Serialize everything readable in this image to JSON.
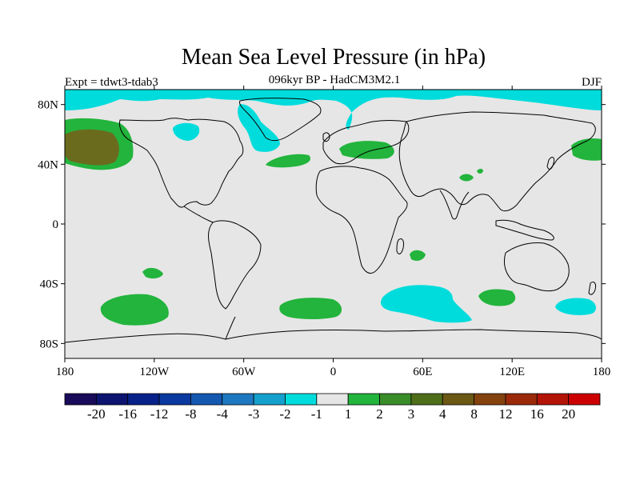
{
  "title": "Mean Sea Level Pressure (in hPa)",
  "subtitle": "096kyr BP - HadCM3M2.1",
  "left_label": "Expt = tdwt3-tdab3",
  "right_label": "DJF",
  "colors": {
    "land_ocean_bg": "#e6e6e6",
    "coast": "#000000",
    "neg_cyan": "#00dcdc",
    "pos_green": "#22b43c",
    "pos_olive": "#6b6b1e"
  },
  "map": {
    "lon_range": [
      -180,
      180
    ],
    "lat_range": [
      -90,
      90
    ],
    "lon_ticks": [
      {
        "value": -180,
        "label": "180"
      },
      {
        "value": -120,
        "label": "120W"
      },
      {
        "value": -60,
        "label": "60W"
      },
      {
        "value": 0,
        "label": "0"
      },
      {
        "value": 60,
        "label": "60E"
      },
      {
        "value": 120,
        "label": "120E"
      },
      {
        "value": 180,
        "label": "180"
      }
    ],
    "lat_ticks": [
      {
        "value": 80,
        "label": "80N"
      },
      {
        "value": 40,
        "label": "40N"
      },
      {
        "value": 0,
        "label": "0"
      },
      {
        "value": -40,
        "label": "40S"
      },
      {
        "value": -80,
        "label": "80S"
      }
    ]
  },
  "colorbar": {
    "colors": [
      "#1a0a5a",
      "#0c1470",
      "#08228a",
      "#0a3aa0",
      "#1458b0",
      "#1e78c0",
      "#14a0cc",
      "#00dcdc",
      "#e6e6e6",
      "#22b43c",
      "#3a8c28",
      "#4f6e1a",
      "#6b5814",
      "#84420e",
      "#9a2a0a",
      "#b41408",
      "#cc0000"
    ],
    "labels": [
      "-20",
      "-16",
      "-12",
      "-8",
      "-4",
      "-3",
      "-2",
      "-1",
      "1",
      "2",
      "3",
      "4",
      "8",
      "12",
      "16",
      "20"
    ]
  }
}
